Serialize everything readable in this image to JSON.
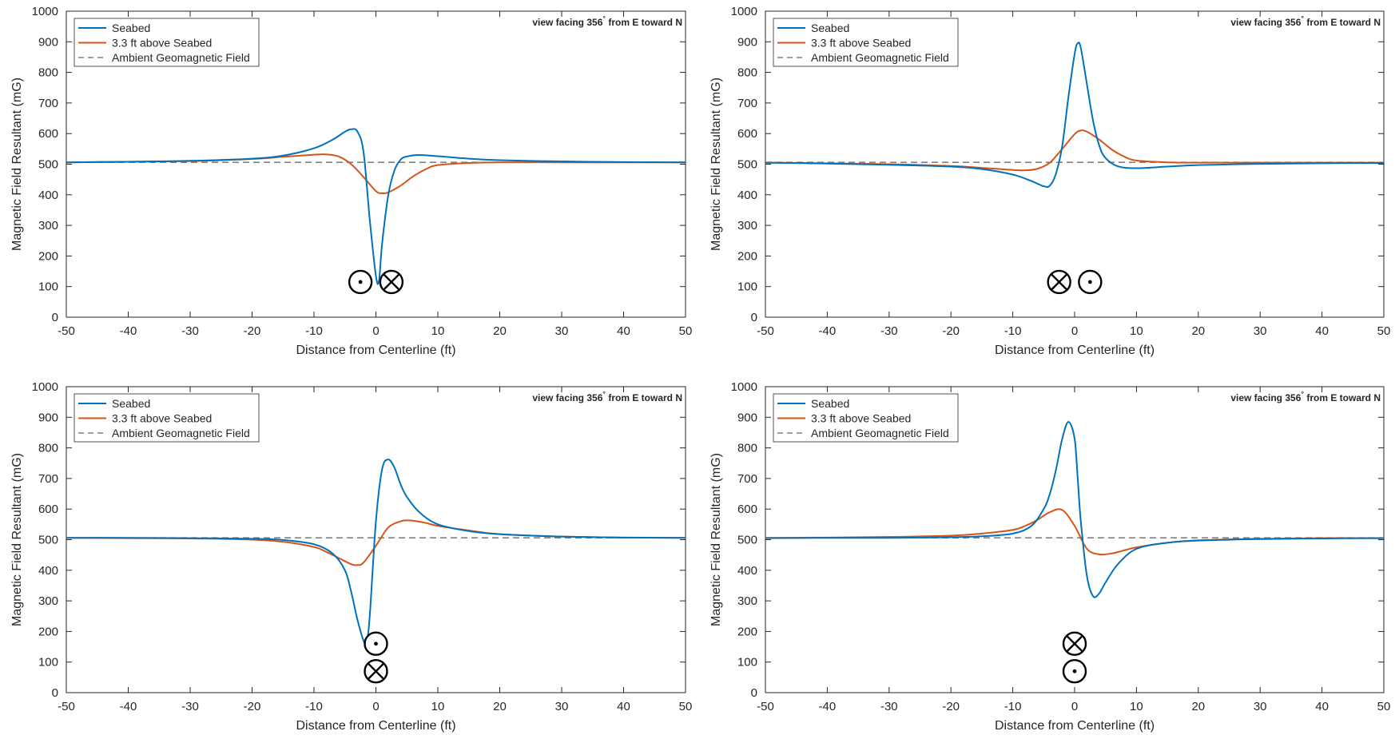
{
  "colors": {
    "seabed": "#0072BD",
    "above": "#D95319",
    "ambient": "#808080",
    "axis": "#262626"
  },
  "panels": [
    {
      "annotation": "view facing 356",
      "annotation_deg": "°",
      "annotation_tail": " from E toward N",
      "conductors": [
        {
          "symbol": "dot",
          "x": -2.5,
          "y": 115
        },
        {
          "symbol": "cross",
          "x": 2.5,
          "y": 115
        }
      ]
    },
    {
      "annotation": "view facing 356",
      "annotation_deg": "°",
      "annotation_tail": " from E toward N",
      "conductors": [
        {
          "symbol": "cross",
          "x": -2.5,
          "y": 115
        },
        {
          "symbol": "dot",
          "x": 2.5,
          "y": 115
        }
      ]
    },
    {
      "annotation": "view facing 356",
      "annotation_deg": "°",
      "annotation_tail": " from E toward N",
      "conductors": [
        {
          "symbol": "dot",
          "x": 0,
          "y": 160
        },
        {
          "symbol": "cross",
          "x": 0,
          "y": 70
        }
      ]
    },
    {
      "annotation": "view facing 356",
      "annotation_deg": "°",
      "annotation_tail": " from E toward N",
      "conductors": [
        {
          "symbol": "cross",
          "x": 0,
          "y": 160
        },
        {
          "symbol": "dot",
          "x": 0,
          "y": 70
        }
      ]
    }
  ],
  "chart_data": [
    {
      "type": "line",
      "xlabel": "Distance from Centerline (ft)",
      "ylabel": "Magnetic Field Resultant (mG)",
      "xlim": [
        -50,
        50
      ],
      "ylim": [
        0,
        1000
      ],
      "xticks": [
        "-50",
        "-40",
        "-30",
        "-20",
        "-10",
        "0",
        "10",
        "20",
        "30",
        "40",
        "50"
      ],
      "yticks": [
        "0",
        "100",
        "200",
        "300",
        "400",
        "500",
        "600",
        "700",
        "800",
        "900",
        "1000"
      ],
      "legend_position": "top-left",
      "series": [
        {
          "name": "Seabed",
          "x": [
            -50,
            -40,
            -30,
            -20,
            -15,
            -10,
            -7,
            -5,
            -4,
            -3,
            -2,
            -1,
            0,
            0.5,
            1,
            2,
            3,
            4,
            5,
            7,
            10,
            15,
            20,
            30,
            40,
            50
          ],
          "y": [
            506,
            508,
            511,
            518,
            528,
            552,
            580,
            606,
            614,
            607,
            540,
            320,
            135,
            120,
            240,
            400,
            480,
            515,
            525,
            530,
            526,
            518,
            513,
            509,
            507,
            506
          ]
        },
        {
          "name": "3.3 ft above Seabed",
          "x": [
            -50,
            -40,
            -30,
            -20,
            -15,
            -10,
            -8,
            -6,
            -4,
            -2,
            0,
            1,
            2,
            4,
            6,
            8,
            10,
            15,
            20,
            30,
            40,
            50
          ],
          "y": [
            506,
            508,
            510,
            517,
            524,
            531,
            532,
            525,
            500,
            458,
            412,
            405,
            408,
            430,
            460,
            483,
            497,
            504,
            506,
            506,
            506,
            506
          ]
        },
        {
          "name": "Ambient Geomagnetic Field",
          "x": [
            -50,
            50
          ],
          "y": [
            506,
            506
          ]
        }
      ]
    },
    {
      "type": "line",
      "xlabel": "Distance from Centerline (ft)",
      "ylabel": "Magnetic Field Resultant (mG)",
      "xlim": [
        -50,
        50
      ],
      "ylim": [
        0,
        1000
      ],
      "xticks": [
        "-50",
        "-40",
        "-30",
        "-20",
        "-10",
        "0",
        "10",
        "20",
        "30",
        "40",
        "50"
      ],
      "yticks": [
        "0",
        "100",
        "200",
        "300",
        "400",
        "500",
        "600",
        "700",
        "800",
        "900",
        "1000"
      ],
      "legend_position": "top-left",
      "series": [
        {
          "name": "Seabed",
          "x": [
            -50,
            -40,
            -30,
            -20,
            -15,
            -10,
            -7,
            -5,
            -4,
            -3,
            -2,
            -1,
            0,
            0.5,
            1,
            2,
            3,
            4,
            5,
            7,
            10,
            15,
            20,
            30,
            40,
            50
          ],
          "y": [
            505,
            502,
            498,
            492,
            484,
            466,
            445,
            428,
            430,
            470,
            560,
            720,
            860,
            895,
            880,
            760,
            640,
            560,
            520,
            493,
            487,
            492,
            497,
            501,
            503,
            504
          ]
        },
        {
          "name": "3.3 ft above Seabed",
          "x": [
            -50,
            -40,
            -30,
            -20,
            -15,
            -10,
            -8,
            -6,
            -4,
            -2,
            0,
            1,
            2,
            4,
            6,
            8,
            10,
            15,
            20,
            30,
            40,
            50
          ],
          "y": [
            505,
            503,
            500,
            494,
            488,
            481,
            480,
            485,
            505,
            550,
            598,
            610,
            606,
            580,
            548,
            525,
            512,
            506,
            505,
            505,
            505,
            505
          ]
        },
        {
          "name": "Ambient Geomagnetic Field",
          "x": [
            -50,
            50
          ],
          "y": [
            506,
            506
          ]
        }
      ]
    },
    {
      "type": "line",
      "xlabel": "Distance from Centerline (ft)",
      "ylabel": "Magnetic Field Resultant (mG)",
      "xlim": [
        -50,
        50
      ],
      "ylim": [
        0,
        1000
      ],
      "xticks": [
        "-50",
        "-40",
        "-30",
        "-20",
        "-10",
        "0",
        "10",
        "20",
        "30",
        "40",
        "50"
      ],
      "yticks": [
        "0",
        "100",
        "200",
        "300",
        "400",
        "500",
        "600",
        "700",
        "800",
        "900",
        "1000"
      ],
      "legend_position": "top-left",
      "series": [
        {
          "name": "Seabed",
          "x": [
            -50,
            -40,
            -30,
            -20,
            -15,
            -10,
            -7,
            -5,
            -4,
            -3,
            -2,
            -1.5,
            -1,
            0,
            1,
            2,
            3,
            4,
            5,
            7,
            10,
            15,
            20,
            30,
            40,
            50
          ],
          "y": [
            506,
            506,
            505,
            503,
            499,
            485,
            455,
            400,
            330,
            240,
            170,
            165,
            250,
            560,
            730,
            762,
            735,
            680,
            640,
            590,
            550,
            528,
            518,
            510,
            507,
            506
          ]
        },
        {
          "name": "3.3 ft above Seabed",
          "x": [
            -50,
            -40,
            -30,
            -20,
            -15,
            -10,
            -8,
            -6,
            -4,
            -3,
            -2,
            0,
            2,
            4,
            5,
            6,
            8,
            10,
            15,
            20,
            30,
            40,
            50
          ],
          "y": [
            506,
            505,
            504,
            500,
            493,
            476,
            460,
            440,
            420,
            417,
            425,
            480,
            540,
            560,
            563,
            562,
            555,
            545,
            530,
            518,
            510,
            507,
            506
          ]
        },
        {
          "name": "Ambient Geomagnetic Field",
          "x": [
            -50,
            50
          ],
          "y": [
            506,
            506
          ]
        }
      ]
    },
    {
      "type": "line",
      "xlabel": "Distance from Centerline (ft)",
      "ylabel": "Magnetic Field Resultant (mG)",
      "xlim": [
        -50,
        50
      ],
      "ylim": [
        0,
        1000
      ],
      "xticks": [
        "-50",
        "-40",
        "-30",
        "-20",
        "-10",
        "0",
        "10",
        "20",
        "30",
        "40",
        "50"
      ],
      "yticks": [
        "0",
        "100",
        "200",
        "300",
        "400",
        "500",
        "600",
        "700",
        "800",
        "900",
        "1000"
      ],
      "legend_position": "top-left",
      "series": [
        {
          "name": "Seabed",
          "x": [
            -50,
            -40,
            -30,
            -20,
            -15,
            -10,
            -7,
            -5,
            -4,
            -3,
            -2,
            -1,
            0,
            0.5,
            1,
            2,
            3,
            4,
            5,
            7,
            10,
            15,
            20,
            30,
            40,
            50
          ],
          "y": [
            505,
            506,
            506,
            508,
            511,
            520,
            545,
            600,
            650,
            730,
            830,
            885,
            830,
            700,
            560,
            380,
            315,
            325,
            360,
            420,
            470,
            490,
            497,
            502,
            504,
            505
          ]
        },
        {
          "name": "3.3 ft above Seabed",
          "x": [
            -50,
            -40,
            -30,
            -20,
            -15,
            -10,
            -8,
            -6,
            -4,
            -2,
            0,
            2,
            4,
            6,
            8,
            10,
            15,
            20,
            30,
            40,
            50
          ],
          "y": [
            506,
            507,
            509,
            513,
            520,
            532,
            545,
            565,
            590,
            597,
            545,
            470,
            452,
            455,
            465,
            475,
            490,
            498,
            503,
            505,
            505
          ]
        },
        {
          "name": "Ambient Geomagnetic Field",
          "x": [
            -50,
            50
          ],
          "y": [
            506,
            506
          ]
        }
      ]
    }
  ]
}
